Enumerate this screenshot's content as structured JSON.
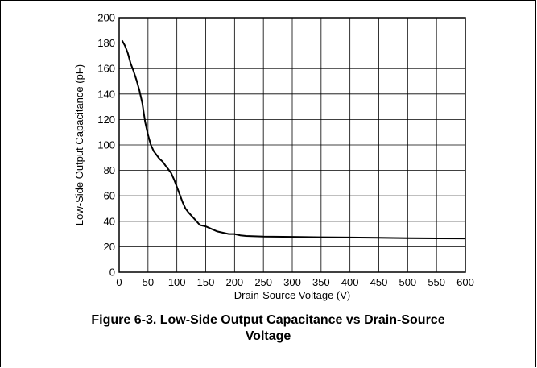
{
  "chart_data": {
    "type": "line",
    "title": "",
    "xlabel": "Drain-Source Voltage (V)",
    "ylabel": "Low-Side Output Capacitance (pF)",
    "xlim": [
      0,
      600
    ],
    "ylim": [
      0,
      200
    ],
    "grid": true,
    "x_ticks": [
      "0",
      "50",
      "100",
      "150",
      "200",
      "250",
      "300",
      "350",
      "400",
      "450",
      "500",
      "550",
      "600"
    ],
    "y_ticks": [
      "0",
      "20",
      "40",
      "60",
      "80",
      "100",
      "120",
      "140",
      "160",
      "180",
      "200"
    ],
    "series": [
      {
        "color": "#000000",
        "x": [
          5,
          10,
          15,
          20,
          25,
          30,
          35,
          40,
          45,
          50,
          55,
          60,
          65,
          70,
          75,
          80,
          85,
          90,
          95,
          100,
          105,
          110,
          115,
          120,
          130,
          140,
          150,
          160,
          170,
          180,
          190,
          200,
          210,
          220,
          250,
          300,
          350,
          400,
          450,
          500,
          550,
          600
        ],
        "y": [
          182,
          178,
          172,
          164,
          158,
          151,
          143,
          133,
          118,
          108,
          100,
          95,
          92,
          89,
          87,
          84,
          81,
          78,
          73,
          67,
          61,
          55,
          50,
          47,
          42,
          37,
          36,
          34,
          32,
          31,
          30,
          30,
          29,
          28.5,
          28,
          27.8,
          27.5,
          27.3,
          27,
          26.8,
          26.6,
          26.5
        ]
      }
    ]
  },
  "caption": {
    "line1": "Figure 6-3. Low-Side Output Capacitance vs Drain-Source",
    "line2": "Voltage"
  }
}
